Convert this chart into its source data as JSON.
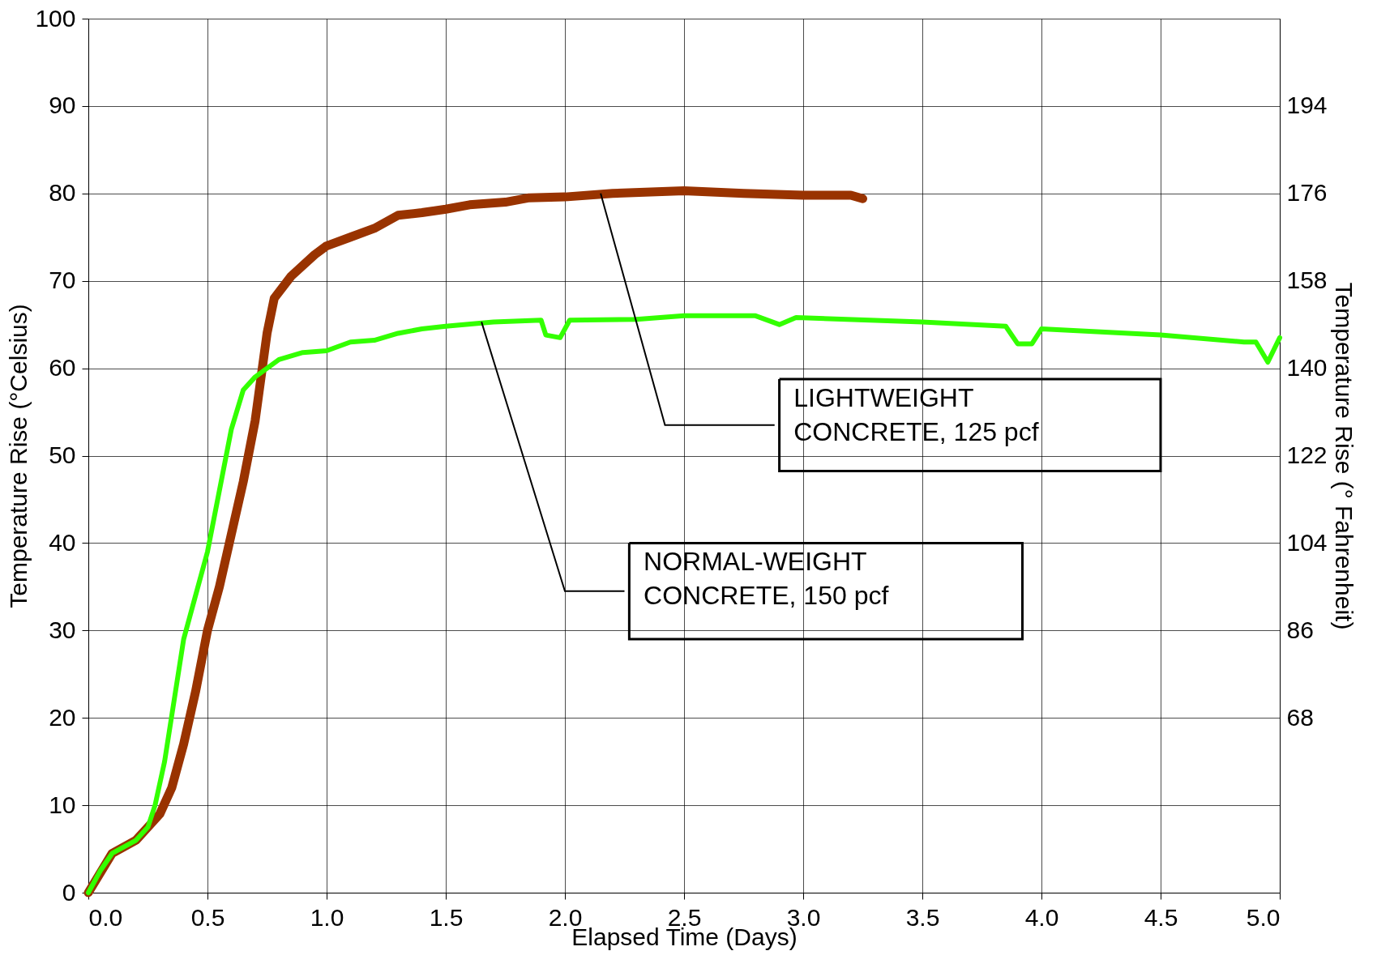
{
  "chart_data": {
    "type": "line",
    "xlabel": "Elapsed Time (Days)",
    "ylabel": "Temperature Rise  (°Celsius)",
    "y2label": "Temperature Rise (° Fahrenheit)",
    "xlim": [
      0,
      5
    ],
    "ylim": [
      0,
      100
    ],
    "y2lim": [
      32,
      212
    ],
    "xticks": [
      {
        "value": 0,
        "label": "0.0"
      },
      0.5,
      {
        "value": 1,
        "label": "1.0"
      },
      1.5,
      {
        "value": 2,
        "label": "2.0"
      },
      2.5,
      {
        "value": 3,
        "label": "3.0"
      },
      3.5,
      {
        "value": 4,
        "label": "4.0"
      },
      4.5,
      {
        "value": 5,
        "label": "5.0"
      }
    ],
    "yticks": [
      0,
      10,
      20,
      30,
      40,
      50,
      60,
      70,
      80,
      90,
      100
    ],
    "y2ticks": [
      68,
      86,
      104,
      122,
      140,
      158,
      176,
      194
    ],
    "grid": true,
    "marker": "none",
    "line_style": "solid",
    "series": [
      {
        "color": "#993300",
        "x": [
          0,
          0.1,
          0.2,
          0.25,
          0.3,
          0.35,
          0.4,
          0.45,
          0.5,
          0.55,
          0.6,
          0.65,
          0.7,
          0.73,
          0.75,
          0.78,
          0.85,
          0.95,
          1.0,
          1.1,
          1.2,
          1.3,
          1.4,
          1.5,
          1.6,
          1.75,
          1.85,
          2.0,
          2.2,
          2.5,
          2.75,
          3.0,
          3.2,
          3.25
        ],
        "values": [
          0,
          4.5,
          6,
          7.5,
          9,
          12,
          17,
          23,
          30,
          35,
          41,
          47,
          54,
          60,
          64,
          68,
          70.5,
          73,
          74,
          75,
          76,
          77.5,
          77.8,
          78.2,
          78.7,
          79,
          79.5,
          79.6,
          80,
          80.3,
          80,
          79.8,
          79.8,
          79.4
        ]
      },
      {
        "color": "#33ff00",
        "x": [
          0,
          0.05,
          0.1,
          0.2,
          0.25,
          0.28,
          0.32,
          0.36,
          0.4,
          0.45,
          0.5,
          0.55,
          0.6,
          0.65,
          0.7,
          0.8,
          0.9,
          1.0,
          1.1,
          1.2,
          1.3,
          1.4,
          1.5,
          1.7,
          1.9,
          1.92,
          1.98,
          2.02,
          2.3,
          2.5,
          2.8,
          2.9,
          2.97,
          3.5,
          3.85,
          3.9,
          3.96,
          4.0,
          4.5,
          4.85,
          4.9,
          4.95,
          5.0
        ],
        "values": [
          0,
          2.5,
          4.5,
          6,
          7.5,
          10,
          15,
          22,
          29,
          34,
          39,
          46,
          53,
          57.5,
          59,
          61,
          61.8,
          62,
          63,
          63.2,
          64,
          64.5,
          64.8,
          65.3,
          65.5,
          63.8,
          63.5,
          65.5,
          65.6,
          66,
          66,
          65,
          65.8,
          65.3,
          64.8,
          62.8,
          62.8,
          64.5,
          63.8,
          63,
          63,
          60.7,
          63.5
        ]
      }
    ],
    "annotations": [
      {
        "text": "LIGHTWEIGHT\nCONCRETE, 125 pcf",
        "x": 2.15,
        "y": 80
      },
      {
        "text": "NORMAL-WEIGHT\nCONCRETE, 150 pcf",
        "x": 1.65,
        "y": 65.3
      }
    ]
  }
}
